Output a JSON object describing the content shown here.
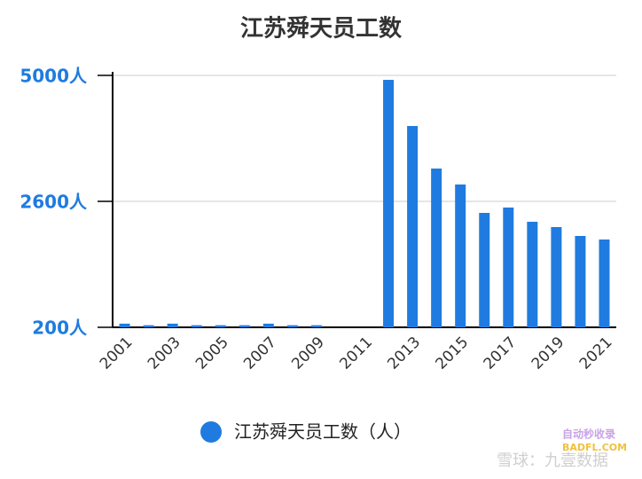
{
  "chart_data": {
    "type": "bar",
    "title": "江苏舜天员工数",
    "categories": [
      "2001",
      null,
      "2003",
      null,
      "2005",
      null,
      "2007",
      null,
      "2009",
      null,
      "2011",
      null,
      "2013",
      null,
      "2015",
      null,
      "2017",
      null,
      "2019",
      null,
      "2021"
    ],
    "series": [
      {
        "name": "江苏舜天员工数（人）",
        "color": "#1f7be0",
        "values": [
          270,
          240,
          270,
          240,
          240,
          240,
          270,
          240,
          240,
          null,
          null,
          4915,
          4036,
          3225,
          2921,
          2380,
          2482,
          2211,
          2110,
          1941,
          1873
        ]
      }
    ],
    "ylim": [
      200,
      5000
    ],
    "yticks": [
      {
        "value": 200,
        "label": "200人"
      },
      {
        "value": 2600,
        "label": "2600人"
      },
      {
        "value": 5000,
        "label": "5000人"
      }
    ],
    "grid": true,
    "legend": "bottom",
    "watermark": [
      "自动秒收录",
      "BADFL.COM",
      "雪球：九壹数据"
    ]
  }
}
